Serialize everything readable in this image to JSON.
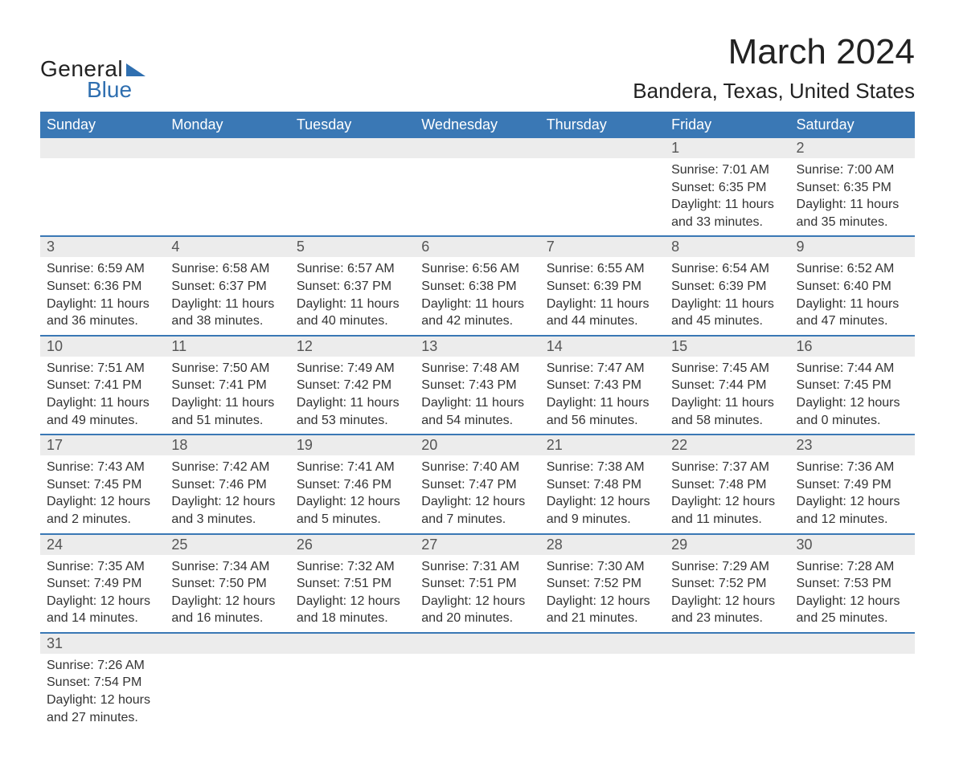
{
  "brand": {
    "word1": "General",
    "word2": "Blue",
    "logo_color": "#2f6fb0"
  },
  "title": "March 2024",
  "location": "Bandera, Texas, United States",
  "colors": {
    "header_bg": "#3a78b5",
    "header_text": "#ffffff",
    "row_divider": "#3a78b5",
    "daynum_bg": "#ececec",
    "text": "#333333",
    "background": "#ffffff"
  },
  "typography": {
    "title_fontsize": 44,
    "location_fontsize": 26,
    "header_fontsize": 18,
    "body_fontsize": 16,
    "font_family": "Arial"
  },
  "layout": {
    "columns": 7,
    "weeks": 6
  },
  "weekdays": [
    "Sunday",
    "Monday",
    "Tuesday",
    "Wednesday",
    "Thursday",
    "Friday",
    "Saturday"
  ],
  "labels": {
    "sunrise": "Sunrise:",
    "sunset": "Sunset:",
    "daylight": "Daylight:"
  },
  "weeks": [
    [
      null,
      null,
      null,
      null,
      null,
      {
        "n": "1",
        "sr": "7:01 AM",
        "ss": "6:35 PM",
        "dl1": "11 hours",
        "dl2": "and 33 minutes."
      },
      {
        "n": "2",
        "sr": "7:00 AM",
        "ss": "6:35 PM",
        "dl1": "11 hours",
        "dl2": "and 35 minutes."
      }
    ],
    [
      {
        "n": "3",
        "sr": "6:59 AM",
        "ss": "6:36 PM",
        "dl1": "11 hours",
        "dl2": "and 36 minutes."
      },
      {
        "n": "4",
        "sr": "6:58 AM",
        "ss": "6:37 PM",
        "dl1": "11 hours",
        "dl2": "and 38 minutes."
      },
      {
        "n": "5",
        "sr": "6:57 AM",
        "ss": "6:37 PM",
        "dl1": "11 hours",
        "dl2": "and 40 minutes."
      },
      {
        "n": "6",
        "sr": "6:56 AM",
        "ss": "6:38 PM",
        "dl1": "11 hours",
        "dl2": "and 42 minutes."
      },
      {
        "n": "7",
        "sr": "6:55 AM",
        "ss": "6:39 PM",
        "dl1": "11 hours",
        "dl2": "and 44 minutes."
      },
      {
        "n": "8",
        "sr": "6:54 AM",
        "ss": "6:39 PM",
        "dl1": "11 hours",
        "dl2": "and 45 minutes."
      },
      {
        "n": "9",
        "sr": "6:52 AM",
        "ss": "6:40 PM",
        "dl1": "11 hours",
        "dl2": "and 47 minutes."
      }
    ],
    [
      {
        "n": "10",
        "sr": "7:51 AM",
        "ss": "7:41 PM",
        "dl1": "11 hours",
        "dl2": "and 49 minutes."
      },
      {
        "n": "11",
        "sr": "7:50 AM",
        "ss": "7:41 PM",
        "dl1": "11 hours",
        "dl2": "and 51 minutes."
      },
      {
        "n": "12",
        "sr": "7:49 AM",
        "ss": "7:42 PM",
        "dl1": "11 hours",
        "dl2": "and 53 minutes."
      },
      {
        "n": "13",
        "sr": "7:48 AM",
        "ss": "7:43 PM",
        "dl1": "11 hours",
        "dl2": "and 54 minutes."
      },
      {
        "n": "14",
        "sr": "7:47 AM",
        "ss": "7:43 PM",
        "dl1": "11 hours",
        "dl2": "and 56 minutes."
      },
      {
        "n": "15",
        "sr": "7:45 AM",
        "ss": "7:44 PM",
        "dl1": "11 hours",
        "dl2": "and 58 minutes."
      },
      {
        "n": "16",
        "sr": "7:44 AM",
        "ss": "7:45 PM",
        "dl1": "12 hours",
        "dl2": "and 0 minutes."
      }
    ],
    [
      {
        "n": "17",
        "sr": "7:43 AM",
        "ss": "7:45 PM",
        "dl1": "12 hours",
        "dl2": "and 2 minutes."
      },
      {
        "n": "18",
        "sr": "7:42 AM",
        "ss": "7:46 PM",
        "dl1": "12 hours",
        "dl2": "and 3 minutes."
      },
      {
        "n": "19",
        "sr": "7:41 AM",
        "ss": "7:46 PM",
        "dl1": "12 hours",
        "dl2": "and 5 minutes."
      },
      {
        "n": "20",
        "sr": "7:40 AM",
        "ss": "7:47 PM",
        "dl1": "12 hours",
        "dl2": "and 7 minutes."
      },
      {
        "n": "21",
        "sr": "7:38 AM",
        "ss": "7:48 PM",
        "dl1": "12 hours",
        "dl2": "and 9 minutes."
      },
      {
        "n": "22",
        "sr": "7:37 AM",
        "ss": "7:48 PM",
        "dl1": "12 hours",
        "dl2": "and 11 minutes."
      },
      {
        "n": "23",
        "sr": "7:36 AM",
        "ss": "7:49 PM",
        "dl1": "12 hours",
        "dl2": "and 12 minutes."
      }
    ],
    [
      {
        "n": "24",
        "sr": "7:35 AM",
        "ss": "7:49 PM",
        "dl1": "12 hours",
        "dl2": "and 14 minutes."
      },
      {
        "n": "25",
        "sr": "7:34 AM",
        "ss": "7:50 PM",
        "dl1": "12 hours",
        "dl2": "and 16 minutes."
      },
      {
        "n": "26",
        "sr": "7:32 AM",
        "ss": "7:51 PM",
        "dl1": "12 hours",
        "dl2": "and 18 minutes."
      },
      {
        "n": "27",
        "sr": "7:31 AM",
        "ss": "7:51 PM",
        "dl1": "12 hours",
        "dl2": "and 20 minutes."
      },
      {
        "n": "28",
        "sr": "7:30 AM",
        "ss": "7:52 PM",
        "dl1": "12 hours",
        "dl2": "and 21 minutes."
      },
      {
        "n": "29",
        "sr": "7:29 AM",
        "ss": "7:52 PM",
        "dl1": "12 hours",
        "dl2": "and 23 minutes."
      },
      {
        "n": "30",
        "sr": "7:28 AM",
        "ss": "7:53 PM",
        "dl1": "12 hours",
        "dl2": "and 25 minutes."
      }
    ],
    [
      {
        "n": "31",
        "sr": "7:26 AM",
        "ss": "7:54 PM",
        "dl1": "12 hours",
        "dl2": "and 27 minutes."
      },
      null,
      null,
      null,
      null,
      null,
      null
    ]
  ]
}
